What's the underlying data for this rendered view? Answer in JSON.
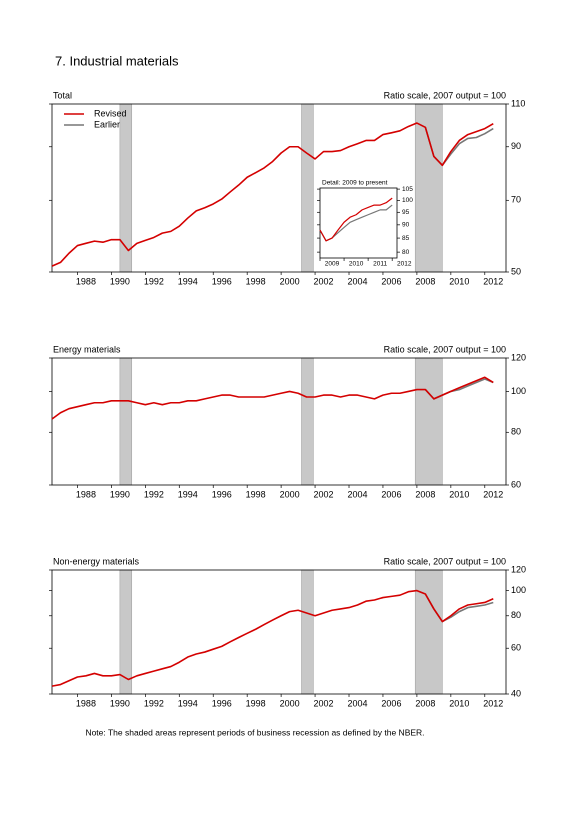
{
  "title": "7. Industrial materials",
  "note": "Note: The shaded areas represent periods of business recession as defined by the NBER.",
  "chart_data": [
    {
      "type": "line",
      "title": "Total",
      "subtitle": "Ratio scale, 2007 output = 100",
      "log_scale": true,
      "legend": "upper left",
      "xlim": [
        1986.5,
        2013.25
      ],
      "ylim": [
        50,
        110
      ],
      "xticks": [
        1988,
        1990,
        1992,
        1994,
        1996,
        1998,
        2000,
        2002,
        2004,
        2006,
        2008,
        2010,
        2012
      ],
      "yticks": [
        50,
        70,
        90,
        110
      ],
      "recessions": [
        [
          1990.5,
          1991.2
        ],
        [
          2001.2,
          2001.9
        ],
        [
          2007.9,
          2009.5
        ]
      ],
      "x": [
        1986.5,
        1987,
        1987.5,
        1988,
        1988.5,
        1989,
        1989.5,
        1990,
        1990.5,
        1991,
        1991.5,
        1992,
        1992.5,
        1993,
        1993.5,
        1994,
        1994.5,
        1995,
        1995.5,
        1996,
        1996.5,
        1997,
        1997.5,
        1998,
        1998.5,
        1999,
        1999.5,
        2000,
        2000.5,
        2001,
        2001.5,
        2002,
        2002.5,
        2003,
        2003.5,
        2004,
        2004.5,
        2005,
        2005.5,
        2006,
        2006.5,
        2007,
        2007.5,
        2008,
        2008.5,
        2009,
        2009.5,
        2010,
        2010.5,
        2011,
        2011.5,
        2012,
        2012.5
      ],
      "series": [
        {
          "name": "Revised",
          "color": "#d40000",
          "values": [
            51.4,
            52.3,
            54.6,
            56.6,
            57.2,
            57.8,
            57.5,
            58.2,
            58.2,
            55.3,
            57.2,
            58,
            58.8,
            60,
            60.5,
            62,
            64.4,
            66.6,
            67.6,
            68.8,
            70.4,
            72.8,
            75.2,
            78,
            79.7,
            81.5,
            84,
            87.4,
            90,
            90,
            87.4,
            85,
            88,
            88,
            88.4,
            90,
            91.3,
            92.7,
            92.7,
            95.3,
            96.1,
            97,
            99,
            100.6,
            98.6,
            86,
            82.5,
            88,
            92.7,
            95.3,
            96.6,
            98,
            100.3
          ]
        },
        {
          "name": "Earlier",
          "color": "#777777",
          "values": [
            null,
            null,
            null,
            null,
            null,
            null,
            null,
            null,
            null,
            null,
            null,
            null,
            null,
            null,
            null,
            null,
            null,
            null,
            null,
            null,
            null,
            null,
            null,
            null,
            null,
            null,
            null,
            null,
            null,
            null,
            null,
            null,
            null,
            null,
            null,
            null,
            null,
            null,
            null,
            null,
            null,
            null,
            null,
            null,
            98.6,
            86,
            82.5,
            87,
            91.3,
            93.6,
            94,
            95.7,
            98
          ]
        }
      ]
    },
    {
      "type": "line",
      "title": "Detail: 2009 to present",
      "log_scale": true,
      "xlim": [
        2009,
        2012.2
      ],
      "ylim": [
        78,
        105.5
      ],
      "xticks": [
        2009,
        2010,
        2011,
        2012
      ],
      "yticks": [
        80,
        85,
        90,
        95,
        100,
        105
      ],
      "x": [
        2009,
        2009.25,
        2009.5,
        2009.75,
        2010,
        2010.25,
        2010.5,
        2010.75,
        2011,
        2011.25,
        2011.5,
        2011.75,
        2012
      ],
      "series": [
        {
          "name": "Revised",
          "color": "#d40000",
          "values": [
            88,
            84,
            85,
            88,
            91,
            93,
            94,
            96,
            97,
            98,
            98,
            99,
            101
          ]
        },
        {
          "name": "Earlier",
          "color": "#777777",
          "values": [
            88,
            84,
            85,
            87,
            89,
            91,
            92,
            93,
            94,
            95,
            96,
            96,
            98
          ]
        }
      ]
    },
    {
      "type": "line",
      "title": "Energy materials",
      "subtitle": "Ratio scale, 2007 output = 100",
      "log_scale": true,
      "xlim": [
        1986.5,
        2013.25
      ],
      "ylim": [
        60,
        120
      ],
      "xticks": [
        1988,
        1990,
        1992,
        1994,
        1996,
        1998,
        2000,
        2002,
        2004,
        2006,
        2008,
        2010,
        2012
      ],
      "yticks": [
        60,
        80,
        100,
        120
      ],
      "recessions": [
        [
          1990.5,
          1991.2
        ],
        [
          2001.2,
          2001.9
        ],
        [
          2007.9,
          2009.5
        ]
      ],
      "x": [
        1986.5,
        1987,
        1987.5,
        1988,
        1988.5,
        1989,
        1989.5,
        1990,
        1990.5,
        1991,
        1991.5,
        1992,
        1992.5,
        1993,
        1993.5,
        1994,
        1994.5,
        1995,
        1995.5,
        1996,
        1996.5,
        1997,
        1997.5,
        1998,
        1998.5,
        1999,
        1999.5,
        2000,
        2000.5,
        2001,
        2001.5,
        2002,
        2002.5,
        2003,
        2003.5,
        2004,
        2004.5,
        2005,
        2005.5,
        2006,
        2006.5,
        2007,
        2007.5,
        2008,
        2008.5,
        2009,
        2009.5,
        2010,
        2010.5,
        2011,
        2011.5,
        2012,
        2012.5
      ],
      "series": [
        {
          "name": "Revised",
          "color": "#d40000",
          "values": [
            86,
            89,
            91,
            92,
            93,
            94,
            94,
            95,
            95,
            95,
            94,
            93,
            94,
            93,
            94,
            94,
            95,
            95,
            96,
            97,
            98,
            98,
            97,
            97,
            97,
            97,
            98,
            99,
            100,
            99,
            97,
            97,
            98,
            98,
            97,
            98,
            98,
            97,
            96,
            98,
            99,
            99,
            100,
            101,
            101,
            96,
            98,
            100,
            102,
            104,
            106,
            108,
            105
          ]
        },
        {
          "name": "Earlier",
          "color": "#777777",
          "values": [
            null,
            null,
            null,
            null,
            null,
            null,
            null,
            null,
            null,
            null,
            null,
            null,
            null,
            null,
            null,
            null,
            null,
            null,
            null,
            null,
            null,
            null,
            null,
            null,
            null,
            null,
            null,
            null,
            null,
            null,
            null,
            null,
            null,
            null,
            null,
            null,
            null,
            null,
            null,
            null,
            null,
            null,
            null,
            null,
            101,
            96,
            98,
            100,
            101,
            103,
            105,
            107,
            105
          ]
        }
      ]
    },
    {
      "type": "line",
      "title": "Non-energy materials",
      "subtitle": "Ratio scale, 2007 output = 100",
      "log_scale": true,
      "xlim": [
        1986.5,
        2013.25
      ],
      "ylim": [
        40,
        120
      ],
      "xticks": [
        1988,
        1990,
        1992,
        1994,
        1996,
        1998,
        2000,
        2002,
        2004,
        2006,
        2008,
        2010,
        2012
      ],
      "yticks": [
        40,
        60,
        80,
        100,
        120
      ],
      "recessions": [
        [
          1990.5,
          1991.2
        ],
        [
          2001.2,
          2001.9
        ],
        [
          2007.9,
          2009.5
        ]
      ],
      "x": [
        1986.5,
        1987,
        1987.5,
        1988,
        1988.5,
        1989,
        1989.5,
        1990,
        1990.5,
        1991,
        1991.5,
        1992,
        1992.5,
        1993,
        1993.5,
        1994,
        1994.5,
        1995,
        1995.5,
        1996,
        1996.5,
        1997,
        1997.5,
        1998,
        1998.5,
        1999,
        1999.5,
        2000,
        2000.5,
        2001,
        2001.5,
        2002,
        2002.5,
        2003,
        2003.5,
        2004,
        2004.5,
        2005,
        2005.5,
        2006,
        2006.5,
        2007,
        2007.5,
        2008,
        2008.5,
        2009,
        2009.5,
        2010,
        2010.5,
        2011,
        2011.5,
        2012,
        2012.5
      ],
      "series": [
        {
          "name": "Revised",
          "color": "#d40000",
          "values": [
            42.9,
            43.5,
            45,
            46.5,
            47,
            48,
            47,
            47,
            47.5,
            45.5,
            47,
            48,
            49,
            50,
            51,
            53,
            55.5,
            57,
            58,
            59.5,
            61,
            63.5,
            66,
            68.5,
            71,
            74,
            77,
            80,
            83,
            84,
            82,
            80,
            82,
            84,
            85,
            86,
            88,
            91,
            92,
            94,
            95,
            96,
            99,
            100,
            97,
            85,
            76,
            80,
            85,
            88,
            89,
            90,
            93
          ]
        },
        {
          "name": "Earlier",
          "color": "#777777",
          "values": [
            null,
            null,
            null,
            null,
            null,
            null,
            null,
            null,
            null,
            null,
            null,
            null,
            null,
            null,
            null,
            null,
            null,
            null,
            null,
            null,
            null,
            null,
            null,
            null,
            null,
            null,
            null,
            null,
            null,
            null,
            null,
            null,
            null,
            null,
            null,
            null,
            null,
            null,
            null,
            null,
            null,
            null,
            null,
            null,
            97,
            85,
            76,
            79,
            83,
            86,
            87,
            88,
            90
          ]
        }
      ]
    }
  ]
}
